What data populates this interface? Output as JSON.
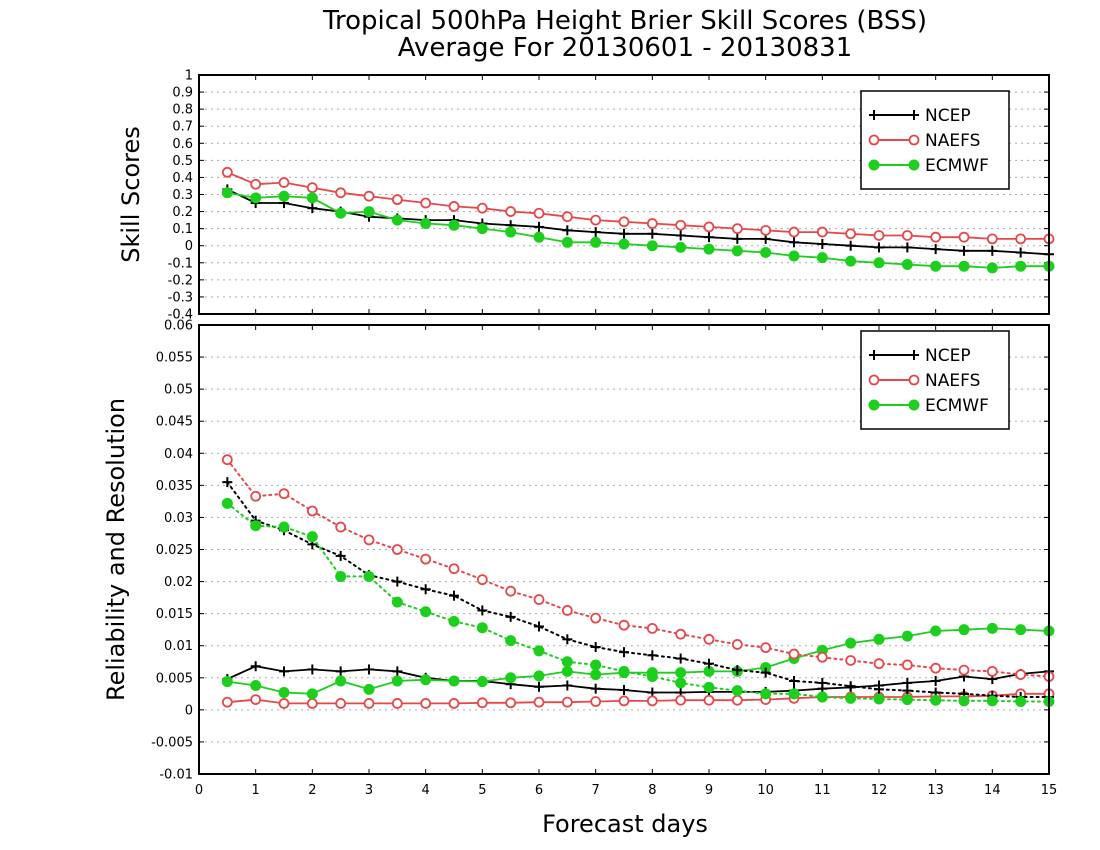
{
  "title_line1": "Tropical 500hPa Height Brier Skill Scores (BSS)",
  "title_line2": "Average For 20130601 - 20130831",
  "xlabel": "Forecast days",
  "x_ticks": [
    0,
    1,
    2,
    3,
    4,
    5,
    6,
    7,
    8,
    9,
    10,
    11,
    12,
    13,
    14,
    15
  ],
  "legend_labels": [
    "NCEP",
    "NAEFS",
    "ECMWF"
  ],
  "colors": {
    "NCEP": "#000000",
    "NAEFS": "#e8474a",
    "ECMWF": "#1dcf1d"
  },
  "chart_data": [
    {
      "type": "line",
      "ylabel": "Skill Scores",
      "xlim": [
        0,
        15
      ],
      "ylim": [
        -0.4,
        1
      ],
      "y_ticks": [
        "1",
        "0.9",
        "0.8",
        "0.7",
        "0.6",
        "0.5",
        "0.4",
        "0.3",
        "0.2",
        "0.1",
        "0",
        "-0.1",
        "-0.2",
        "-0.3",
        "-0.4"
      ],
      "legend": "top-right",
      "grid": true,
      "x": [
        0.5,
        1,
        1.5,
        2,
        2.5,
        3,
        3.5,
        4,
        4.5,
        5,
        5.5,
        6,
        6.5,
        7,
        7.5,
        8,
        8.5,
        9,
        9.5,
        10,
        10.5,
        11,
        11.5,
        12,
        12.5,
        13,
        13.5,
        14,
        14.5,
        15
      ],
      "series": [
        {
          "name": "NCEP",
          "style": "solid",
          "marker": "plus",
          "values": [
            0.33,
            0.25,
            0.25,
            0.22,
            0.2,
            0.17,
            0.16,
            0.15,
            0.15,
            0.13,
            0.12,
            0.11,
            0.09,
            0.08,
            0.07,
            0.07,
            0.06,
            0.05,
            0.04,
            0.04,
            0.02,
            0.01,
            0.0,
            -0.01,
            -0.01,
            -0.02,
            -0.03,
            -0.03,
            -0.04,
            -0.05
          ]
        },
        {
          "name": "NAEFS",
          "style": "solid",
          "marker": "open-circle",
          "values": [
            0.43,
            0.36,
            0.37,
            0.34,
            0.31,
            0.29,
            0.27,
            0.25,
            0.23,
            0.22,
            0.2,
            0.19,
            0.17,
            0.15,
            0.14,
            0.13,
            0.12,
            0.11,
            0.1,
            0.09,
            0.08,
            0.08,
            0.07,
            0.06,
            0.06,
            0.05,
            0.05,
            0.04,
            0.04,
            0.04
          ]
        },
        {
          "name": "ECMWF",
          "style": "solid",
          "marker": "filled-circle",
          "values": [
            0.31,
            0.28,
            0.29,
            0.28,
            0.19,
            0.2,
            0.15,
            0.13,
            0.12,
            0.1,
            0.08,
            0.05,
            0.02,
            0.02,
            0.01,
            0.0,
            -0.01,
            -0.02,
            -0.03,
            -0.04,
            -0.06,
            -0.07,
            -0.09,
            -0.1,
            -0.11,
            -0.12,
            -0.12,
            -0.13,
            -0.12,
            -0.12
          ]
        }
      ]
    },
    {
      "type": "line",
      "ylabel": "Reliability and Resolution",
      "xlim": [
        0,
        15
      ],
      "ylim": [
        -0.01,
        0.06
      ],
      "y_ticks": [
        "0.06",
        "0.055",
        "0.05",
        "0.045",
        "0.04",
        "0.035",
        "0.03",
        "0.025",
        "0.02",
        "0.015",
        "0.01",
        "0.005",
        "0",
        "-0.005",
        "-0.01"
      ],
      "legend": "top-right",
      "grid": true,
      "x": [
        0.5,
        1,
        1.5,
        2,
        2.5,
        3,
        3.5,
        4,
        4.5,
        5,
        5.5,
        6,
        6.5,
        7,
        7.5,
        8,
        8.5,
        9,
        9.5,
        10,
        10.5,
        11,
        11.5,
        12,
        12.5,
        13,
        13.5,
        14,
        14.5,
        15
      ],
      "series": [
        {
          "name": "NCEP",
          "group": "reliability",
          "style": "solid",
          "marker": "plus",
          "values": [
            0.0048,
            0.0068,
            0.006,
            0.0063,
            0.006,
            0.0063,
            0.006,
            0.005,
            0.0045,
            0.0045,
            0.004,
            0.0036,
            0.0038,
            0.0033,
            0.0031,
            0.0027,
            0.0027,
            0.0028,
            0.0028,
            0.0028,
            0.003,
            0.0033,
            0.0035,
            0.0038,
            0.0042,
            0.0045,
            0.0052,
            0.0048,
            0.0056,
            0.006
          ]
        },
        {
          "name": "NAEFS",
          "group": "reliability",
          "style": "solid",
          "marker": "open-circle",
          "values": [
            0.0012,
            0.0016,
            0.001,
            0.001,
            0.001,
            0.001,
            0.001,
            0.001,
            0.001,
            0.0011,
            0.0011,
            0.0012,
            0.0012,
            0.0013,
            0.0014,
            0.0014,
            0.0015,
            0.0015,
            0.0015,
            0.0016,
            0.0018,
            0.002,
            0.002,
            0.002,
            0.002,
            0.0021,
            0.0021,
            0.0022,
            0.0025,
            0.0025
          ]
        },
        {
          "name": "ECMWF",
          "group": "reliability",
          "style": "solid",
          "marker": "filled-circle",
          "values": [
            0.0044,
            0.0038,
            0.0027,
            0.0025,
            0.0045,
            0.0032,
            0.0045,
            0.0047,
            0.0045,
            0.0044,
            0.005,
            0.0053,
            0.006,
            0.0055,
            0.0058,
            0.0058,
            0.0058,
            0.006,
            0.006,
            0.0066,
            0.008,
            0.0093,
            0.0104,
            0.011,
            0.0115,
            0.0123,
            0.0125,
            0.0127,
            0.0125,
            0.0123
          ]
        },
        {
          "name": "NCEP",
          "group": "resolution",
          "style": "dotted",
          "marker": "plus",
          "values": [
            0.0355,
            0.0295,
            0.028,
            0.0258,
            0.024,
            0.021,
            0.02,
            0.0188,
            0.0178,
            0.0155,
            0.0145,
            0.013,
            0.011,
            0.0098,
            0.009,
            0.0085,
            0.008,
            0.0072,
            0.0062,
            0.0058,
            0.0045,
            0.0042,
            0.0037,
            0.0032,
            0.003,
            0.0027,
            0.0025,
            0.0022,
            0.002,
            0.002
          ]
        },
        {
          "name": "NAEFS",
          "group": "resolution",
          "style": "dotted",
          "marker": "open-circle",
          "values": [
            0.039,
            0.0333,
            0.0337,
            0.031,
            0.0285,
            0.0265,
            0.025,
            0.0235,
            0.022,
            0.0203,
            0.0185,
            0.0172,
            0.0155,
            0.0143,
            0.0132,
            0.0127,
            0.0118,
            0.011,
            0.0102,
            0.0097,
            0.0087,
            0.0082,
            0.0077,
            0.0072,
            0.007,
            0.0065,
            0.0062,
            0.006,
            0.0055,
            0.0052
          ]
        },
        {
          "name": "ECMWF",
          "group": "resolution",
          "style": "dotted",
          "marker": "filled-circle",
          "values": [
            0.0322,
            0.0287,
            0.0285,
            0.027,
            0.0208,
            0.0208,
            0.0168,
            0.0153,
            0.0138,
            0.0128,
            0.0108,
            0.0092,
            0.0075,
            0.007,
            0.006,
            0.0052,
            0.0042,
            0.0035,
            0.003,
            0.0025,
            0.0025,
            0.002,
            0.0018,
            0.0017,
            0.0016,
            0.0015,
            0.0014,
            0.0014,
            0.0013,
            0.0013
          ]
        }
      ]
    }
  ]
}
